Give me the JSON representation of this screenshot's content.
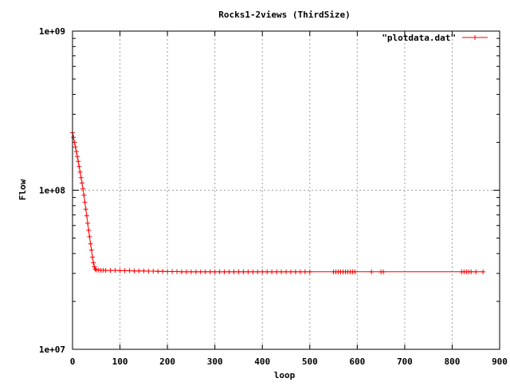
{
  "chart_data": {
    "type": "line",
    "title": "Rocks1-2views (ThirdSize)",
    "xlabel": "loop",
    "ylabel": "Flow",
    "xlim": [
      0,
      900
    ],
    "ylim": [
      10000000,
      1000000000
    ],
    "yscale": "log",
    "grid": true,
    "legend_position": "top-right",
    "x_ticks": [
      "0",
      "100",
      "200",
      "300",
      "400",
      "500",
      "600",
      "700",
      "800",
      "900"
    ],
    "y_ticks": [
      "1e+07",
      "1e+08",
      "1e+09"
    ],
    "series": [
      {
        "name": "\"plotdata.dat\"",
        "color": "#ff0000",
        "marker": "plus",
        "x": [
          0,
          2,
          4,
          6,
          8,
          10,
          12,
          14,
          16,
          18,
          20,
          22,
          24,
          26,
          28,
          30,
          32,
          34,
          36,
          38,
          40,
          42,
          44,
          46,
          48,
          50,
          55,
          60,
          65,
          70,
          80,
          90,
          100,
          110,
          120,
          130,
          140,
          150,
          160,
          170,
          180,
          190,
          200,
          210,
          220,
          230,
          240,
          250,
          260,
          270,
          280,
          290,
          300,
          310,
          320,
          330,
          340,
          350,
          360,
          370,
          380,
          390,
          400,
          410,
          420,
          430,
          440,
          450,
          460,
          470,
          480,
          490,
          500,
          550,
          555,
          560,
          565,
          570,
          575,
          580,
          585,
          590,
          595,
          630,
          650,
          655,
          820,
          825,
          830,
          835,
          840,
          850,
          865
        ],
        "y": [
          230000000,
          215000000,
          200000000,
          187000000,
          175000000,
          163000000,
          152000000,
          141000000,
          130000000,
          120000000,
          111000000,
          102000000,
          93000000,
          84000000,
          76000000,
          69000000,
          62000000,
          56000000,
          51000000,
          46000000,
          42000000,
          38000000,
          35000000,
          33000000,
          32000000,
          31500000,
          31500000,
          31400000,
          31400000,
          31300000,
          31300000,
          31300000,
          31200000,
          31200000,
          31200000,
          31100000,
          31100000,
          31100000,
          31000000,
          31000000,
          30900000,
          30900000,
          30800000,
          30800000,
          30800000,
          30700000,
          30700000,
          30700000,
          30700000,
          30700000,
          30700000,
          30700000,
          30700000,
          30700000,
          30700000,
          30700000,
          30700000,
          30700000,
          30700000,
          30700000,
          30700000,
          30700000,
          30700000,
          30700000,
          30700000,
          30700000,
          30700000,
          30700000,
          30700000,
          30700000,
          30700000,
          30700000,
          30700000,
          30700000,
          30700000,
          30700000,
          30700000,
          30700000,
          30700000,
          30700000,
          30700000,
          30700000,
          30700000,
          30700000,
          30700000,
          30700000,
          30700000,
          30700000,
          30700000,
          30700000,
          30700000,
          30700000,
          30700000
        ]
      }
    ]
  }
}
